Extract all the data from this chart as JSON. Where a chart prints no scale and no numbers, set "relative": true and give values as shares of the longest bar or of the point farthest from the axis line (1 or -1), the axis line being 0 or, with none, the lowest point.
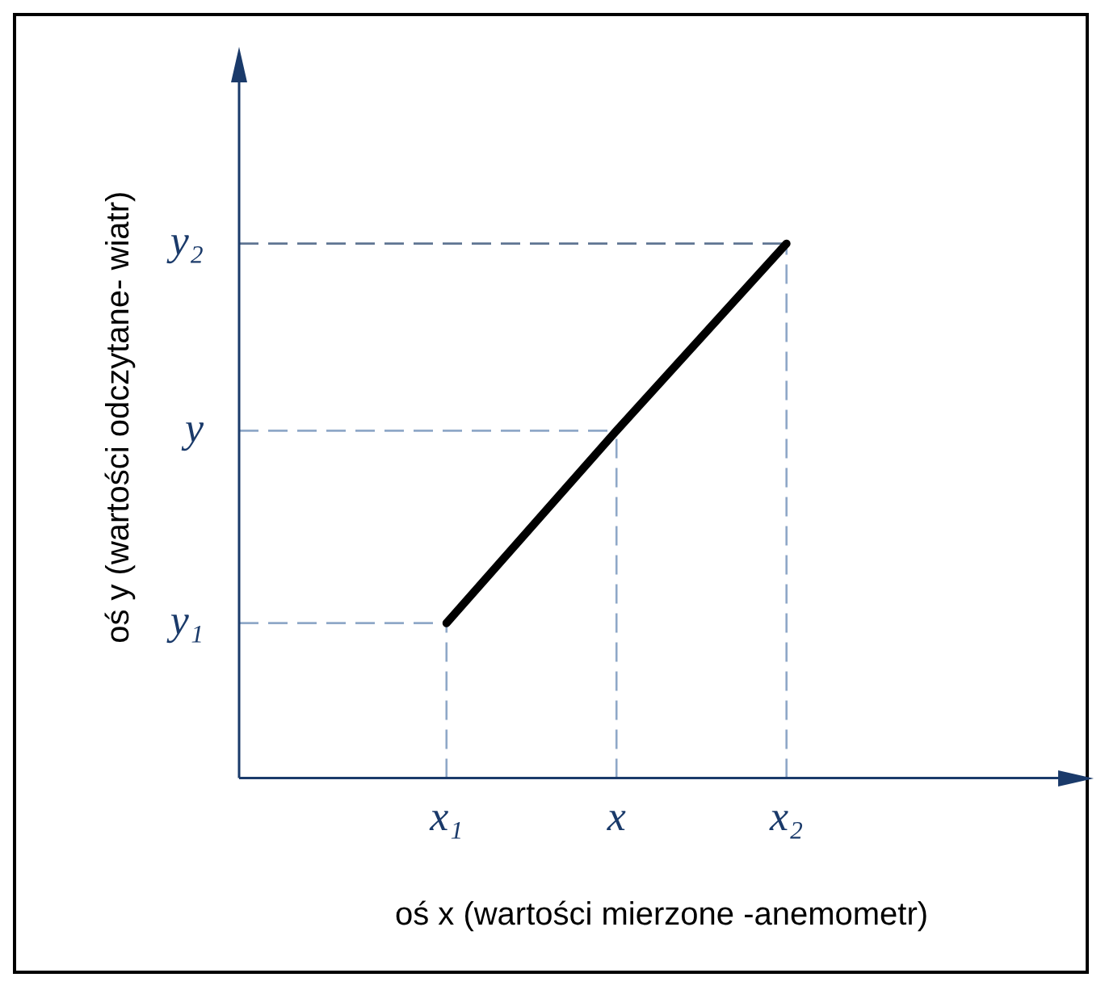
{
  "chart_data": {
    "type": "line",
    "relative": true,
    "xlabel": "oś x (wartości mierzone -anemometr)",
    "ylabel": "oś y (wartości odczytane- wiatr)",
    "categories": [
      "x₁",
      "x",
      "x₂"
    ],
    "series": [
      {
        "color": "#000000",
        "values": [
          0.29,
          0.65,
          1
        ]
      }
    ],
    "ref_lines": [
      {
        "axis": "y",
        "value": 0.29,
        "label": "y₁",
        "color": "#8fa8c8",
        "line_style": "dashed"
      },
      {
        "axis": "y",
        "value": 0.65,
        "label": "y",
        "color": "#8fa8c8",
        "line_style": "dashed"
      },
      {
        "axis": "y",
        "value": 1,
        "label": "y₂",
        "color": "#5f7592",
        "line_style": "dashed"
      },
      {
        "axis": "x",
        "value": "x₁",
        "label": null,
        "color": "#8fa8c8",
        "line_style": "dashed"
      },
      {
        "axis": "x",
        "value": "x",
        "label": null,
        "color": "#8fa8c8",
        "line_style": "dashed"
      },
      {
        "axis": "x",
        "value": "x₂",
        "label": null,
        "color": "#8fa8c8",
        "line_style": "dashed"
      }
    ],
    "grid": false,
    "legend": false,
    "marker": "none",
    "line_style": "solid"
  }
}
